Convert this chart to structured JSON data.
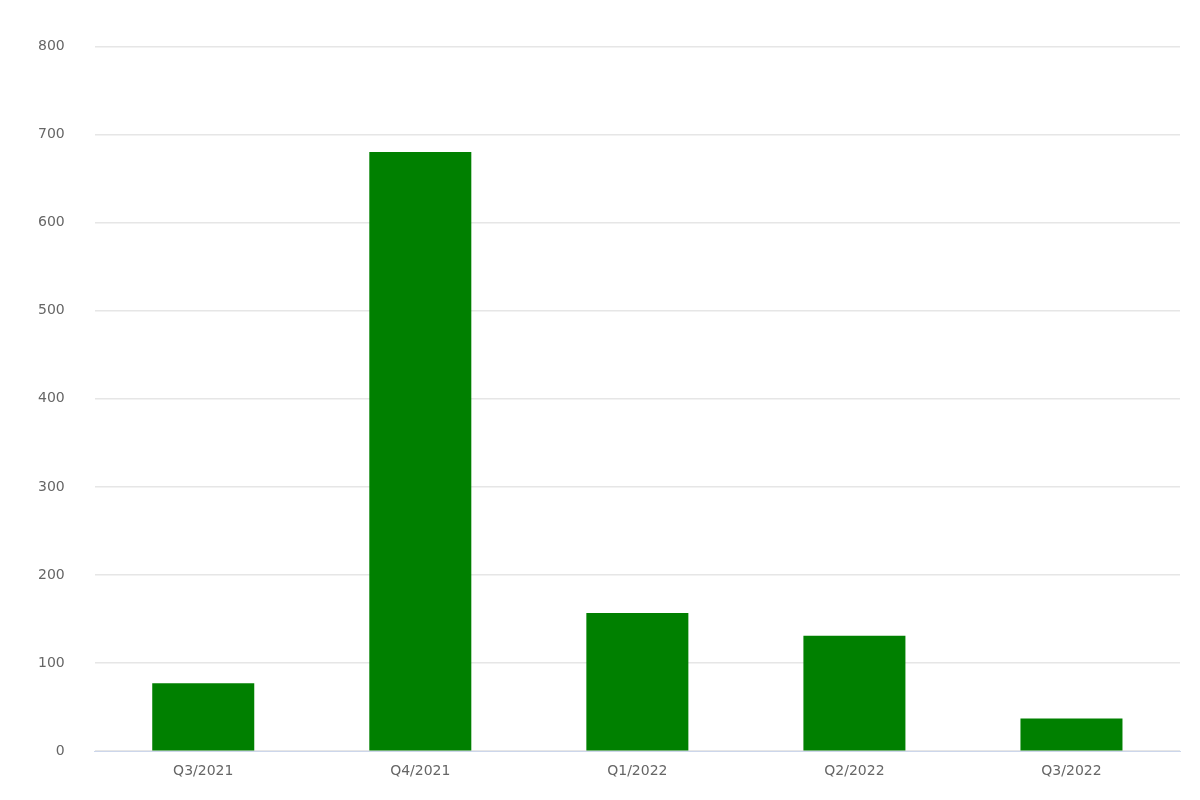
{
  "chart_data": {
    "type": "bar",
    "categories": [
      "Q3/2021",
      "Q4/2021",
      "Q1/2022",
      "Q2/2022",
      "Q3/2022"
    ],
    "values": [
      77,
      680,
      157,
      131,
      37
    ],
    "color": "#008000",
    "ylim": [
      0,
      800
    ],
    "yticks": [
      0,
      100,
      200,
      300,
      400,
      500,
      600,
      700,
      800
    ],
    "grid": "y",
    "legend": false
  }
}
